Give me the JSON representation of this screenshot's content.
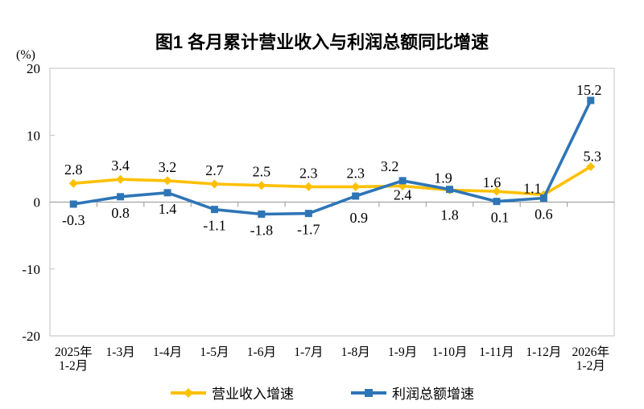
{
  "chart_data": {
    "type": "line",
    "title": "图1 各月累计营业收入与利润总额同比增速",
    "y_unit": "(%)",
    "categories": [
      "2025年\n1-2月",
      "1-3月",
      "1-4月",
      "1-5月",
      "1-6月",
      "1-7月",
      "1-8月",
      "1-9月",
      "1-10月",
      "1-11月",
      "1-12月",
      "2026年\n1-2月"
    ],
    "ylim": [
      -20,
      20
    ],
    "yticks": [
      20,
      10,
      0,
      -10,
      -20
    ],
    "grid": false,
    "zero_line": true,
    "legend_position": "bottom",
    "series": [
      {
        "name": "营业收入增速",
        "color": "#FFC000",
        "marker": "diamond",
        "values": [
          2.8,
          3.4,
          3.2,
          2.7,
          2.5,
          2.3,
          2.3,
          2.4,
          1.8,
          1.6,
          1.1,
          5.3
        ],
        "label_positions": [
          "above",
          "above",
          "above",
          "above",
          "above",
          "above",
          "above",
          "below",
          "below",
          "above",
          "above",
          "above"
        ]
      },
      {
        "name": "利润总额增速",
        "color": "#2E75B6",
        "marker": "square",
        "values": [
          -0.3,
          0.8,
          1.4,
          -1.1,
          -1.8,
          -1.7,
          0.9,
          3.2,
          1.9,
          0.1,
          0.6,
          15.2
        ],
        "label_positions": [
          "below",
          "below",
          "below",
          "below",
          "below",
          "below",
          "below",
          "above",
          "above",
          "below",
          "below",
          "above"
        ]
      }
    ],
    "label_nudges": [
      {
        "7": [
          0,
          -9
        ],
        "8": [
          0,
          11
        ],
        "9": [
          -6,
          6
        ],
        "10": [
          -14,
          9
        ],
        "11": [
          2,
          4
        ]
      },
      {
        "6": [
          4,
          7
        ],
        "7": [
          -16,
          -1
        ],
        "8": [
          -8,
          3
        ],
        "9": [
          4,
          0
        ],
        "11": [
          -2,
          4
        ]
      }
    ],
    "axis_color": "#C0C0C0",
    "zero_line_color": "#969696",
    "text_color": "#000000"
  }
}
